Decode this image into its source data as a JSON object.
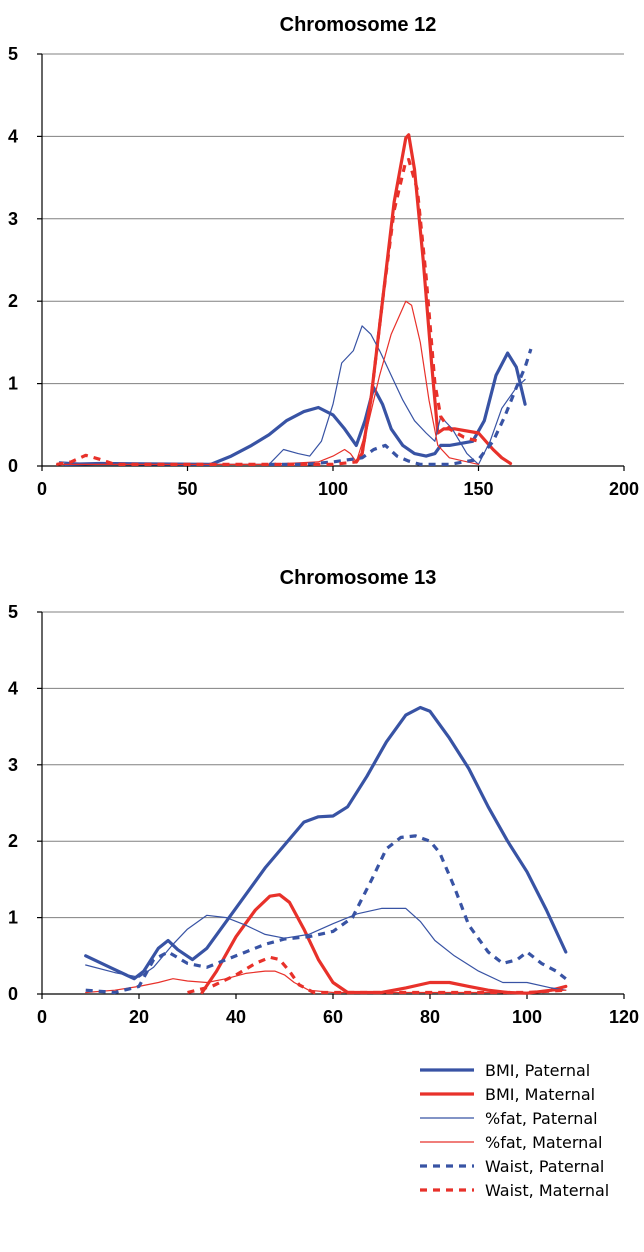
{
  "chart_data": [
    {
      "type": "line",
      "title": "Chromosome 12",
      "xlabel": "",
      "ylabel": "",
      "xlim": [
        0,
        200
      ],
      "ylim": [
        0,
        5
      ],
      "xticks": [
        "0",
        "50",
        "100",
        "150",
        "200"
      ],
      "yticks": [
        "0",
        "1",
        "2",
        "3",
        "4",
        "5"
      ],
      "grid": "horizontal",
      "series": [
        {
          "name": "BMI, Paternal",
          "x": [
            8,
            20,
            58,
            65,
            72,
            78,
            84,
            90,
            95,
            100,
            104,
            108,
            111,
            114,
            117,
            120,
            124,
            128,
            132,
            135,
            137,
            140,
            148,
            152,
            156,
            160,
            163,
            166
          ],
          "y": [
            0.02,
            0.03,
            0.02,
            0.12,
            0.25,
            0.38,
            0.55,
            0.66,
            0.71,
            0.62,
            0.45,
            0.25,
            0.55,
            0.95,
            0.75,
            0.45,
            0.25,
            0.15,
            0.12,
            0.15,
            0.25,
            0.25,
            0.3,
            0.55,
            1.1,
            1.37,
            1.2,
            0.75
          ]
        },
        {
          "name": "BMI, Maternal",
          "x": [
            108,
            110,
            113,
            117,
            121,
            125,
            126,
            128,
            131,
            134,
            136,
            138,
            142,
            150,
            155,
            158,
            161
          ],
          "y": [
            0.05,
            0.15,
            0.8,
            2.0,
            3.2,
            3.98,
            4.02,
            3.6,
            2.5,
            1.2,
            0.4,
            0.45,
            0.45,
            0.4,
            0.2,
            0.1,
            0.03
          ]
        },
        {
          "name": "%fat, Paternal",
          "x": [
            6,
            20,
            78,
            83,
            88,
            92,
            96,
            100,
            103,
            107,
            110,
            113,
            116,
            120,
            124,
            128,
            132,
            135,
            137,
            141,
            146,
            150,
            154,
            158,
            163,
            166
          ],
          "y": [
            0.05,
            0.02,
            0.02,
            0.2,
            0.15,
            0.12,
            0.3,
            0.75,
            1.25,
            1.4,
            1.7,
            1.6,
            1.4,
            1.1,
            0.8,
            0.55,
            0.4,
            0.3,
            0.6,
            0.45,
            0.15,
            0.02,
            0.3,
            0.7,
            0.95,
            1.05
          ]
        },
        {
          "name": "%fat, Maternal",
          "x": [
            5,
            20,
            40,
            78,
            95,
            100,
            104,
            106,
            108,
            112,
            116,
            120,
            125,
            127,
            130,
            133,
            136,
            140,
            150
          ],
          "y": [
            0.02,
            0.02,
            0.02,
            0.02,
            0.05,
            0.12,
            0.2,
            0.15,
            0.05,
            0.5,
            1.1,
            1.6,
            2.0,
            1.95,
            1.5,
            0.8,
            0.25,
            0.1,
            0.02
          ]
        },
        {
          "name": "Waist, Paternal",
          "x": [
            78,
            90,
            100,
            110,
            114,
            118,
            122,
            126,
            130,
            140,
            150,
            155,
            159,
            163,
            166,
            168
          ],
          "y": [
            0.02,
            0.02,
            0.05,
            0.1,
            0.2,
            0.25,
            0.12,
            0.06,
            0.02,
            0.02,
            0.08,
            0.3,
            0.6,
            0.95,
            1.2,
            1.42
          ]
        },
        {
          "name": "Waist, Maternal",
          "x": [
            5,
            10,
            15,
            20,
            25,
            40,
            60,
            80,
            100,
            108,
            110,
            113,
            117,
            121,
            125,
            126,
            129,
            132,
            135,
            137,
            140,
            145,
            150
          ],
          "y": [
            0.02,
            0.05,
            0.13,
            0.08,
            0.02,
            0.02,
            0.02,
            0.02,
            0.02,
            0.05,
            0.15,
            0.8,
            2.0,
            3.1,
            3.7,
            3.72,
            3.35,
            2.3,
            1.0,
            0.6,
            0.45,
            0.35,
            0.3
          ]
        }
      ]
    },
    {
      "type": "line",
      "title": "Chromosome 13",
      "xlabel": "",
      "ylabel": "",
      "xlim": [
        0,
        120
      ],
      "ylim": [
        0,
        5
      ],
      "xticks": [
        "0",
        "20",
        "40",
        "60",
        "80",
        "100",
        "120"
      ],
      "yticks": [
        "0",
        "1",
        "2",
        "3",
        "4",
        "5"
      ],
      "grid": "horizontal",
      "series": [
        {
          "name": "BMI, Paternal",
          "x": [
            9,
            14,
            19,
            21,
            24,
            26,
            28,
            31,
            34,
            38,
            42,
            46,
            50,
            54,
            57,
            60,
            63,
            67,
            71,
            75,
            78,
            80,
            84,
            88,
            92,
            96,
            100,
            104,
            108
          ],
          "y": [
            0.5,
            0.35,
            0.2,
            0.3,
            0.6,
            0.7,
            0.58,
            0.45,
            0.6,
            0.95,
            1.3,
            1.65,
            1.95,
            2.25,
            2.32,
            2.33,
            2.45,
            2.85,
            3.3,
            3.65,
            3.75,
            3.7,
            3.35,
            2.95,
            2.45,
            2.0,
            1.6,
            1.1,
            0.55
          ]
        },
        {
          "name": "BMI, Maternal",
          "x": [
            33,
            36,
            40,
            44,
            47,
            49,
            51,
            54,
            57,
            60,
            63,
            66,
            70,
            75,
            80,
            84,
            88,
            92,
            96,
            100,
            105,
            108
          ],
          "y": [
            0.02,
            0.3,
            0.75,
            1.1,
            1.28,
            1.3,
            1.2,
            0.85,
            0.45,
            0.15,
            0.02,
            0.02,
            0.02,
            0.08,
            0.15,
            0.15,
            0.1,
            0.05,
            0.02,
            0.01,
            0.05,
            0.1
          ]
        },
        {
          "name": "%fat, Paternal",
          "x": [
            9,
            15,
            20,
            23,
            27,
            30,
            34,
            38,
            42,
            46,
            50,
            55,
            60,
            65,
            70,
            75,
            78,
            81,
            85,
            90,
            95,
            100,
            105,
            108
          ],
          "y": [
            0.38,
            0.28,
            0.22,
            0.35,
            0.65,
            0.85,
            1.03,
            1.0,
            0.9,
            0.78,
            0.73,
            0.78,
            0.92,
            1.05,
            1.12,
            1.12,
            0.95,
            0.7,
            0.5,
            0.3,
            0.15,
            0.15,
            0.08,
            0.05
          ]
        },
        {
          "name": "%fat, Maternal",
          "x": [
            9,
            15,
            20,
            24,
            27,
            30,
            34,
            38,
            42,
            46,
            48,
            50,
            52,
            55,
            60,
            65,
            70,
            80,
            90,
            100,
            108
          ],
          "y": [
            0.02,
            0.05,
            0.1,
            0.15,
            0.2,
            0.17,
            0.15,
            0.2,
            0.27,
            0.3,
            0.3,
            0.25,
            0.15,
            0.05,
            0.02,
            0.02,
            0.02,
            0.02,
            0.02,
            0.02,
            0.05
          ]
        },
        {
          "name": "Waist, Paternal",
          "x": [
            9,
            15,
            20,
            23,
            26,
            30,
            34,
            38,
            42,
            46,
            50,
            55,
            60,
            64,
            68,
            71,
            74,
            77,
            80,
            82,
            85,
            88,
            92,
            95,
            98,
            100,
            103,
            106,
            108
          ],
          "y": [
            0.05,
            0.02,
            0.1,
            0.45,
            0.55,
            0.4,
            0.35,
            0.45,
            0.55,
            0.65,
            0.72,
            0.75,
            0.82,
            1.0,
            1.5,
            1.9,
            2.05,
            2.07,
            2.0,
            1.85,
            1.4,
            0.9,
            0.55,
            0.4,
            0.45,
            0.55,
            0.4,
            0.3,
            0.2
          ]
        },
        {
          "name": "Waist, Maternal",
          "x": [
            30,
            35,
            40,
            44,
            47,
            49,
            51,
            53,
            56,
            60,
            70,
            80,
            90,
            100,
            108
          ],
          "y": [
            0.02,
            0.1,
            0.25,
            0.4,
            0.48,
            0.45,
            0.3,
            0.12,
            0.02,
            0.02,
            0.02,
            0.02,
            0.02,
            0.02,
            0.05
          ]
        }
      ]
    }
  ],
  "legend": {
    "placement": "bottom-right",
    "entries": [
      {
        "label": "BMI, Paternal",
        "color": "#3853a4",
        "style": "thick"
      },
      {
        "label": "BMI, Maternal",
        "color": "#e8312a",
        "style": "thick"
      },
      {
        "label": "%fat, Paternal",
        "color": "#3853a4",
        "style": "thin"
      },
      {
        "label": "%fat, Maternal",
        "color": "#e8312a",
        "style": "thin"
      },
      {
        "label": "Waist, Paternal",
        "color": "#3853a4",
        "style": "dotted"
      },
      {
        "label": "Waist, Maternal",
        "color": "#e8312a",
        "style": "dotted"
      }
    ]
  },
  "colors": {
    "paternal": "#3853a4",
    "maternal": "#e8312a",
    "grid": "#808080",
    "axis": "#000000"
  }
}
